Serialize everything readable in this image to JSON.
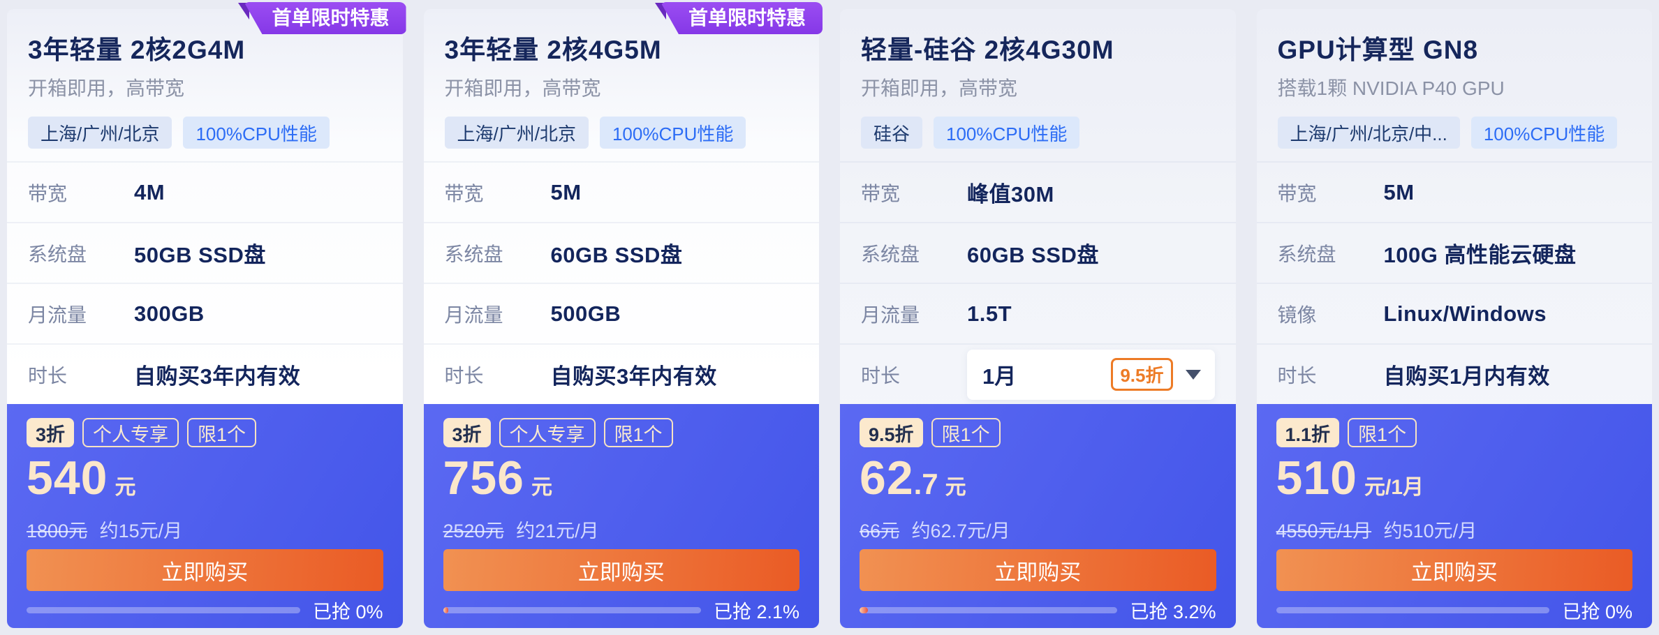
{
  "colors": {
    "page_bg": "#e9ebf3",
    "ribbon_purple": "#8d40e9",
    "deal_blue": "#4a5aee",
    "buy_orange": "#ea5b25",
    "discount_orange": "#ed7b26",
    "title_navy": "#15265b"
  },
  "cards": [
    {
      "ribbon": "首单限时特惠",
      "title": "3年轻量 2核2G4M",
      "subtitle": "开箱即用，高带宽",
      "tags": [
        "上海/广州/北京",
        "100%CPU性能"
      ],
      "specs": [
        {
          "label": "带宽",
          "value": "4M"
        },
        {
          "label": "系统盘",
          "value": "50GB SSD盘"
        },
        {
          "label": "月流量",
          "value": "300GB"
        },
        {
          "label": "时长",
          "value": "自购买3年内有效"
        }
      ],
      "deal": {
        "badges": [
          "3折",
          "个人专享",
          "限1个"
        ],
        "price_main": "540",
        "price_decimal": "",
        "price_unit": "元",
        "orig_price": "1800元",
        "approx": "约15元/月",
        "buy_label": "立即购买",
        "sold_label": "已抢 0%",
        "sold_percent": 0
      }
    },
    {
      "ribbon": "首单限时特惠",
      "title": "3年轻量 2核4G5M",
      "subtitle": "开箱即用，高带宽",
      "tags": [
        "上海/广州/北京",
        "100%CPU性能"
      ],
      "specs": [
        {
          "label": "带宽",
          "value": "5M"
        },
        {
          "label": "系统盘",
          "value": "60GB SSD盘"
        },
        {
          "label": "月流量",
          "value": "500GB"
        },
        {
          "label": "时长",
          "value": "自购买3年内有效"
        }
      ],
      "deal": {
        "badges": [
          "3折",
          "个人专享",
          "限1个"
        ],
        "price_main": "756",
        "price_decimal": "",
        "price_unit": "元",
        "orig_price": "2520元",
        "approx": "约21元/月",
        "buy_label": "立即购买",
        "sold_label": "已抢 2.1%",
        "sold_percent": 2.1
      }
    },
    {
      "title": "轻量-硅谷 2核4G30M",
      "subtitle": "开箱即用，高带宽",
      "tags": [
        "硅谷",
        "100%CPU性能"
      ],
      "specs": [
        {
          "label": "带宽",
          "value": "峰值30M"
        },
        {
          "label": "系统盘",
          "value": "60GB SSD盘"
        },
        {
          "label": "月流量",
          "value": "1.5T"
        },
        {
          "label": "时长",
          "value": "1月",
          "discount": "9.5折",
          "dropdown": true
        }
      ],
      "deal": {
        "badges": [
          "9.5折",
          "限1个"
        ],
        "price_main": "62",
        "price_decimal": ".7",
        "price_unit": "元",
        "orig_price": "66元",
        "approx": "约62.7元/月",
        "buy_label": "立即购买",
        "sold_label": "已抢 3.2%",
        "sold_percent": 3.2
      }
    },
    {
      "title": "GPU计算型 GN8",
      "subtitle": "搭载1颗 NVIDIA P40 GPU",
      "tags": [
        "上海/广州/北京/中...",
        "100%CPU性能"
      ],
      "specs": [
        {
          "label": "带宽",
          "value": "5M"
        },
        {
          "label": "系统盘",
          "value": "100G 高性能云硬盘"
        },
        {
          "label": "镜像",
          "value": "Linux/Windows"
        },
        {
          "label": "时长",
          "value": "自购买1月内有效"
        }
      ],
      "deal": {
        "badges": [
          "1.1折",
          "限1个"
        ],
        "price_main": "510",
        "price_decimal": "",
        "price_unit": "元/1月",
        "orig_price": "4550元/1月",
        "approx": "约510元/月",
        "buy_label": "立即购买",
        "sold_label": "已抢 0%",
        "sold_percent": 0
      }
    }
  ]
}
